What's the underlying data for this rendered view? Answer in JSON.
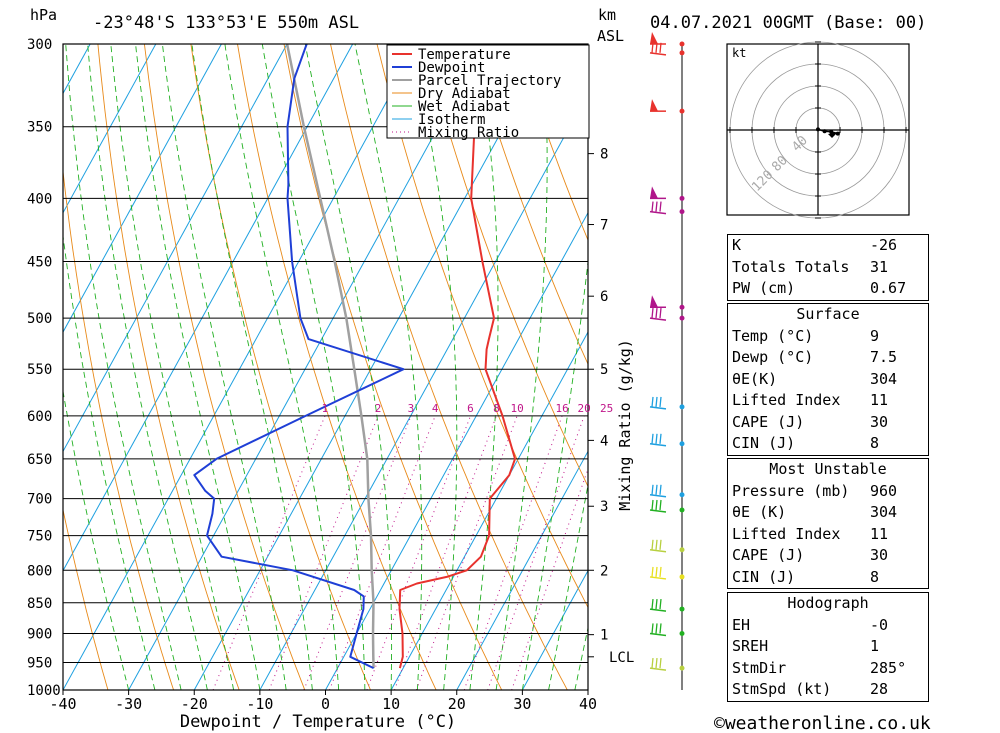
{
  "header": {
    "location": "-23°48'S 133°53'E 550m ASL",
    "datetime": "04.07.2021 00GMT (Base: 00)",
    "hpa_label": "hPa",
    "km_label": "km",
    "asl_label": "ASL"
  },
  "chart_data": {
    "type": "skew-t",
    "xlabel": "Dewpoint / Temperature (°C)",
    "ylabel": "hPa",
    "mixing_ratio_axis_label": "Mixing Ratio (g/kg)",
    "x_ticks": [
      -40,
      -30,
      -20,
      -10,
      0,
      10,
      20,
      30,
      40
    ],
    "pressure_levels": [
      300,
      350,
      400,
      450,
      500,
      550,
      600,
      650,
      700,
      750,
      800,
      850,
      900,
      950,
      1000
    ],
    "height_ticks_km": [
      {
        "label": "8",
        "p": 368
      },
      {
        "label": "7",
        "p": 420
      },
      {
        "label": "6",
        "p": 480
      },
      {
        "label": "5",
        "p": 550
      },
      {
        "label": "4",
        "p": 628
      },
      {
        "label": "3",
        "p": 710
      },
      {
        "label": "2",
        "p": 800
      },
      {
        "label": "1",
        "p": 902
      }
    ],
    "lcl": {
      "label": "LCL",
      "p": 940
    },
    "mixing_ratio_labels": [
      "1",
      "2",
      "3",
      "4",
      "6",
      "8",
      "10",
      "16",
      "20",
      "25"
    ],
    "legend": [
      "Temperature",
      "Dewpoint",
      "Parcel Trajectory",
      "Dry Adiabat",
      "Wet Adiabat",
      "Isotherm",
      "Mixing Ratio"
    ],
    "colors": {
      "temperature": "#e8322d",
      "dewpoint": "#1f3fd6",
      "parcel": "#a0a0a0",
      "dry": "#e88a1a",
      "wet": "#22b022",
      "isotherm": "#1ea0e0",
      "mixing": "#c0168a"
    },
    "temperature": [
      [
        960,
        9.5
      ],
      [
        940,
        9
      ],
      [
        900,
        7
      ],
      [
        860,
        4.5
      ],
      [
        830,
        3
      ],
      [
        820,
        5
      ],
      [
        810,
        9
      ],
      [
        800,
        11.5
      ],
      [
        780,
        12.5
      ],
      [
        750,
        12
      ],
      [
        700,
        9
      ],
      [
        670,
        10
      ],
      [
        650,
        9.5
      ],
      [
        600,
        4
      ],
      [
        550,
        -2.5
      ],
      [
        530,
        -4
      ],
      [
        520,
        -4.5
      ],
      [
        500,
        -5.5
      ],
      [
        450,
        -12
      ],
      [
        400,
        -19
      ],
      [
        350,
        -24.5
      ],
      [
        320,
        -29
      ],
      [
        300,
        -33
      ]
    ],
    "dewpoint": [
      [
        960,
        5.5
      ],
      [
        940,
        1
      ],
      [
        900,
        0
      ],
      [
        860,
        -1
      ],
      [
        840,
        -2
      ],
      [
        830,
        -4
      ],
      [
        800,
        -15
      ],
      [
        780,
        -27
      ],
      [
        750,
        -31
      ],
      [
        720,
        -32
      ],
      [
        700,
        -33
      ],
      [
        690,
        -35
      ],
      [
        670,
        -38
      ],
      [
        650,
        -36
      ],
      [
        600,
        -26
      ],
      [
        550,
        -15
      ],
      [
        520,
        -32
      ],
      [
        500,
        -35
      ],
      [
        450,
        -41
      ],
      [
        400,
        -47
      ],
      [
        390,
        -48
      ],
      [
        350,
        -53
      ],
      [
        320,
        -56
      ],
      [
        300,
        -57
      ]
    ],
    "parcel": [
      [
        960,
        5.5
      ],
      [
        940,
        4.5
      ],
      [
        900,
        2.5
      ],
      [
        850,
        0
      ],
      [
        800,
        -3
      ],
      [
        750,
        -6
      ],
      [
        700,
        -9.5
      ],
      [
        650,
        -13
      ],
      [
        600,
        -17.5
      ],
      [
        550,
        -22.5
      ],
      [
        500,
        -28
      ],
      [
        450,
        -34.5
      ],
      [
        400,
        -42
      ],
      [
        350,
        -50.5
      ],
      [
        300,
        -60
      ]
    ],
    "wind_barbs": [
      {
        "p": 300,
        "color": "#e8322d",
        "kind": "pennant"
      },
      {
        "p": 305,
        "color": "#e8322d",
        "kind": "barbs"
      },
      {
        "p": 340,
        "color": "#e8322d",
        "kind": "pennant"
      },
      {
        "p": 400,
        "color": "#b0168a",
        "kind": "pennant"
      },
      {
        "p": 410,
        "color": "#b0168a",
        "kind": "barbs"
      },
      {
        "p": 490,
        "color": "#b0168a",
        "kind": "pennant"
      },
      {
        "p": 500,
        "color": "#b0168a",
        "kind": "barbs"
      },
      {
        "p": 590,
        "color": "#1ea0e0",
        "kind": "barbs"
      },
      {
        "p": 632,
        "color": "#1ea0e0",
        "kind": "barbs"
      },
      {
        "p": 695,
        "color": "#1ea0e0",
        "kind": "barbs"
      },
      {
        "p": 715,
        "color": "#22b022",
        "kind": "barbs"
      },
      {
        "p": 770,
        "color": "#b8d040",
        "kind": "barbs"
      },
      {
        "p": 810,
        "color": "#e8e020",
        "kind": "barbs"
      },
      {
        "p": 860,
        "color": "#22b022",
        "kind": "barbs"
      },
      {
        "p": 900,
        "color": "#22b022",
        "kind": "barbs"
      },
      {
        "p": 960,
        "color": "#b8d040",
        "kind": "barbs"
      }
    ],
    "hodograph": {
      "unit": "kt",
      "ring_labels": [
        "40",
        "80",
        "120"
      ],
      "trace": [
        [
          0,
          -1
        ],
        [
          6,
          2
        ],
        [
          12,
          3
        ],
        [
          18,
          6
        ]
      ]
    }
  },
  "indices": {
    "k_label": "K",
    "k": "-26",
    "tt_label": "Totals Totals",
    "tt": "31",
    "pw_label": "PW (cm)",
    "pw": "0.67"
  },
  "surface": {
    "title": "Surface",
    "temp_label": "Temp (°C)",
    "temp": "9",
    "dewp_label": "Dewp (°C)",
    "dewp": "7.5",
    "theta_label": "θE(K)",
    "theta": "304",
    "li_label": "Lifted Index",
    "li": "11",
    "cape_label": "CAPE (J)",
    "cape": "30",
    "cin_label": "CIN (J)",
    "cin": "8"
  },
  "most_unstable": {
    "title": "Most Unstable",
    "pressure_label": "Pressure (mb)",
    "pressure": "960",
    "theta_label": "θE (K)",
    "theta": "304",
    "li_label": "Lifted Index",
    "li": "11",
    "cape_label": "CAPE (J)",
    "cape": "30",
    "cin_label": "CIN (J)",
    "cin": "8"
  },
  "hodograph_table": {
    "title": "Hodograph",
    "eh_label": "EH",
    "eh": "-0",
    "sreh_label": "SREH",
    "sreh": "1",
    "stmdir_label": "StmDir",
    "stmdir": "285°",
    "stmspd_label": "StmSpd (kt)",
    "stmspd": "28"
  },
  "footer": {
    "copyright": "©weatheronline.co.uk"
  }
}
